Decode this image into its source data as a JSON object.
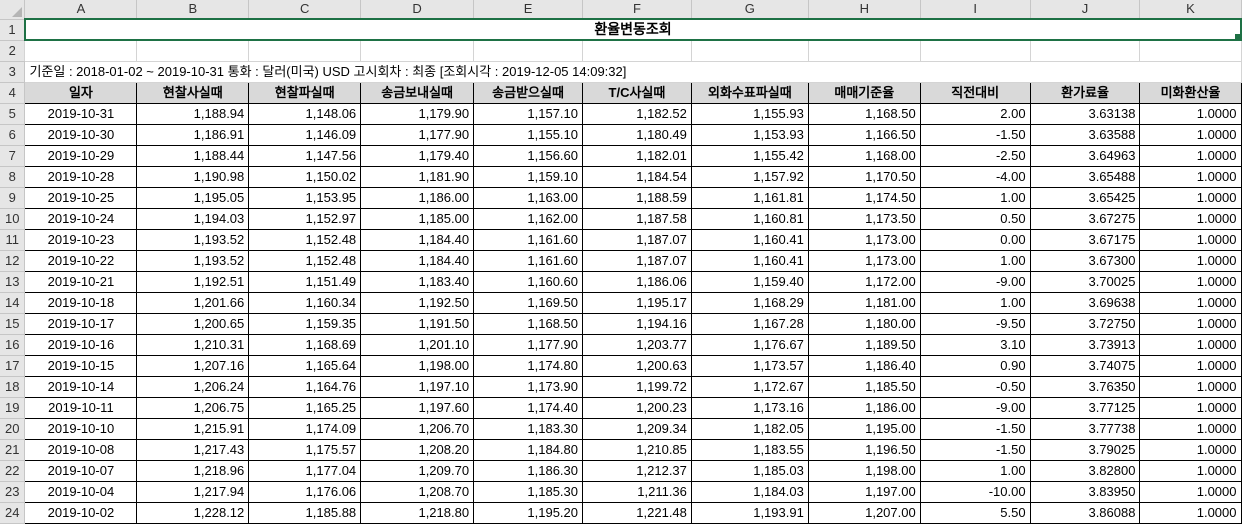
{
  "columns": [
    "A",
    "B",
    "C",
    "D",
    "E",
    "F",
    "G",
    "H",
    "I",
    "J",
    "K"
  ],
  "title": "환율변동조회",
  "info_line": "기준일 : 2018-01-02 ~ 2019-10-31 통화 : 달러(미국) USD 고시회차 : 최종 [조회시각 : 2019-12-05 14:09:32]",
  "headers": [
    "일자",
    "현찰사실때",
    "현찰파실때",
    "송금보내실때",
    "송금받으실때",
    "T/C사실때",
    "외화수표파실때",
    "매매기준율",
    "직전대비",
    "환가료율",
    "미화환산율"
  ],
  "rows": [
    {
      "n": "5",
      "v": [
        "2019-10-31",
        "1,188.94",
        "1,148.06",
        "1,179.90",
        "1,157.10",
        "1,182.52",
        "1,155.93",
        "1,168.50",
        "2.00",
        "3.63138",
        "1.0000"
      ]
    },
    {
      "n": "6",
      "v": [
        "2019-10-30",
        "1,186.91",
        "1,146.09",
        "1,177.90",
        "1,155.10",
        "1,180.49",
        "1,153.93",
        "1,166.50",
        "-1.50",
        "3.63588",
        "1.0000"
      ]
    },
    {
      "n": "7",
      "v": [
        "2019-10-29",
        "1,188.44",
        "1,147.56",
        "1,179.40",
        "1,156.60",
        "1,182.01",
        "1,155.42",
        "1,168.00",
        "-2.50",
        "3.64963",
        "1.0000"
      ]
    },
    {
      "n": "8",
      "v": [
        "2019-10-28",
        "1,190.98",
        "1,150.02",
        "1,181.90",
        "1,159.10",
        "1,184.54",
        "1,157.92",
        "1,170.50",
        "-4.00",
        "3.65488",
        "1.0000"
      ]
    },
    {
      "n": "9",
      "v": [
        "2019-10-25",
        "1,195.05",
        "1,153.95",
        "1,186.00",
        "1,163.00",
        "1,188.59",
        "1,161.81",
        "1,174.50",
        "1.00",
        "3.65425",
        "1.0000"
      ]
    },
    {
      "n": "10",
      "v": [
        "2019-10-24",
        "1,194.03",
        "1,152.97",
        "1,185.00",
        "1,162.00",
        "1,187.58",
        "1,160.81",
        "1,173.50",
        "0.50",
        "3.67275",
        "1.0000"
      ]
    },
    {
      "n": "11",
      "v": [
        "2019-10-23",
        "1,193.52",
        "1,152.48",
        "1,184.40",
        "1,161.60",
        "1,187.07",
        "1,160.41",
        "1,173.00",
        "0.00",
        "3.67175",
        "1.0000"
      ]
    },
    {
      "n": "12",
      "v": [
        "2019-10-22",
        "1,193.52",
        "1,152.48",
        "1,184.40",
        "1,161.60",
        "1,187.07",
        "1,160.41",
        "1,173.00",
        "1.00",
        "3.67300",
        "1.0000"
      ]
    },
    {
      "n": "13",
      "v": [
        "2019-10-21",
        "1,192.51",
        "1,151.49",
        "1,183.40",
        "1,160.60",
        "1,186.06",
        "1,159.40",
        "1,172.00",
        "-9.00",
        "3.70025",
        "1.0000"
      ]
    },
    {
      "n": "14",
      "v": [
        "2019-10-18",
        "1,201.66",
        "1,160.34",
        "1,192.50",
        "1,169.50",
        "1,195.17",
        "1,168.29",
        "1,181.00",
        "1.00",
        "3.69638",
        "1.0000"
      ]
    },
    {
      "n": "15",
      "v": [
        "2019-10-17",
        "1,200.65",
        "1,159.35",
        "1,191.50",
        "1,168.50",
        "1,194.16",
        "1,167.28",
        "1,180.00",
        "-9.50",
        "3.72750",
        "1.0000"
      ]
    },
    {
      "n": "16",
      "v": [
        "2019-10-16",
        "1,210.31",
        "1,168.69",
        "1,201.10",
        "1,177.90",
        "1,203.77",
        "1,176.67",
        "1,189.50",
        "3.10",
        "3.73913",
        "1.0000"
      ]
    },
    {
      "n": "17",
      "v": [
        "2019-10-15",
        "1,207.16",
        "1,165.64",
        "1,198.00",
        "1,174.80",
        "1,200.63",
        "1,173.57",
        "1,186.40",
        "0.90",
        "3.74075",
        "1.0000"
      ]
    },
    {
      "n": "18",
      "v": [
        "2019-10-14",
        "1,206.24",
        "1,164.76",
        "1,197.10",
        "1,173.90",
        "1,199.72",
        "1,172.67",
        "1,185.50",
        "-0.50",
        "3.76350",
        "1.0000"
      ]
    },
    {
      "n": "19",
      "v": [
        "2019-10-11",
        "1,206.75",
        "1,165.25",
        "1,197.60",
        "1,174.40",
        "1,200.23",
        "1,173.16",
        "1,186.00",
        "-9.00",
        "3.77125",
        "1.0000"
      ]
    },
    {
      "n": "20",
      "v": [
        "2019-10-10",
        "1,215.91",
        "1,174.09",
        "1,206.70",
        "1,183.30",
        "1,209.34",
        "1,182.05",
        "1,195.00",
        "-1.50",
        "3.77738",
        "1.0000"
      ]
    },
    {
      "n": "21",
      "v": [
        "2019-10-08",
        "1,217.43",
        "1,175.57",
        "1,208.20",
        "1,184.80",
        "1,210.85",
        "1,183.55",
        "1,196.50",
        "-1.50",
        "3.79025",
        "1.0000"
      ]
    },
    {
      "n": "22",
      "v": [
        "2019-10-07",
        "1,218.96",
        "1,177.04",
        "1,209.70",
        "1,186.30",
        "1,212.37",
        "1,185.03",
        "1,198.00",
        "1.00",
        "3.82800",
        "1.0000"
      ]
    },
    {
      "n": "23",
      "v": [
        "2019-10-04",
        "1,217.94",
        "1,176.06",
        "1,208.70",
        "1,185.30",
        "1,211.36",
        "1,184.03",
        "1,197.00",
        "-10.00",
        "3.83950",
        "1.0000"
      ]
    },
    {
      "n": "24",
      "v": [
        "2019-10-02",
        "1,228.12",
        "1,185.88",
        "1,218.80",
        "1,195.20",
        "1,221.48",
        "1,193.91",
        "1,207.00",
        "5.50",
        "3.86088",
        "1.0000"
      ]
    }
  ],
  "row_numbers_top": [
    "1",
    "2",
    "3",
    "4"
  ]
}
